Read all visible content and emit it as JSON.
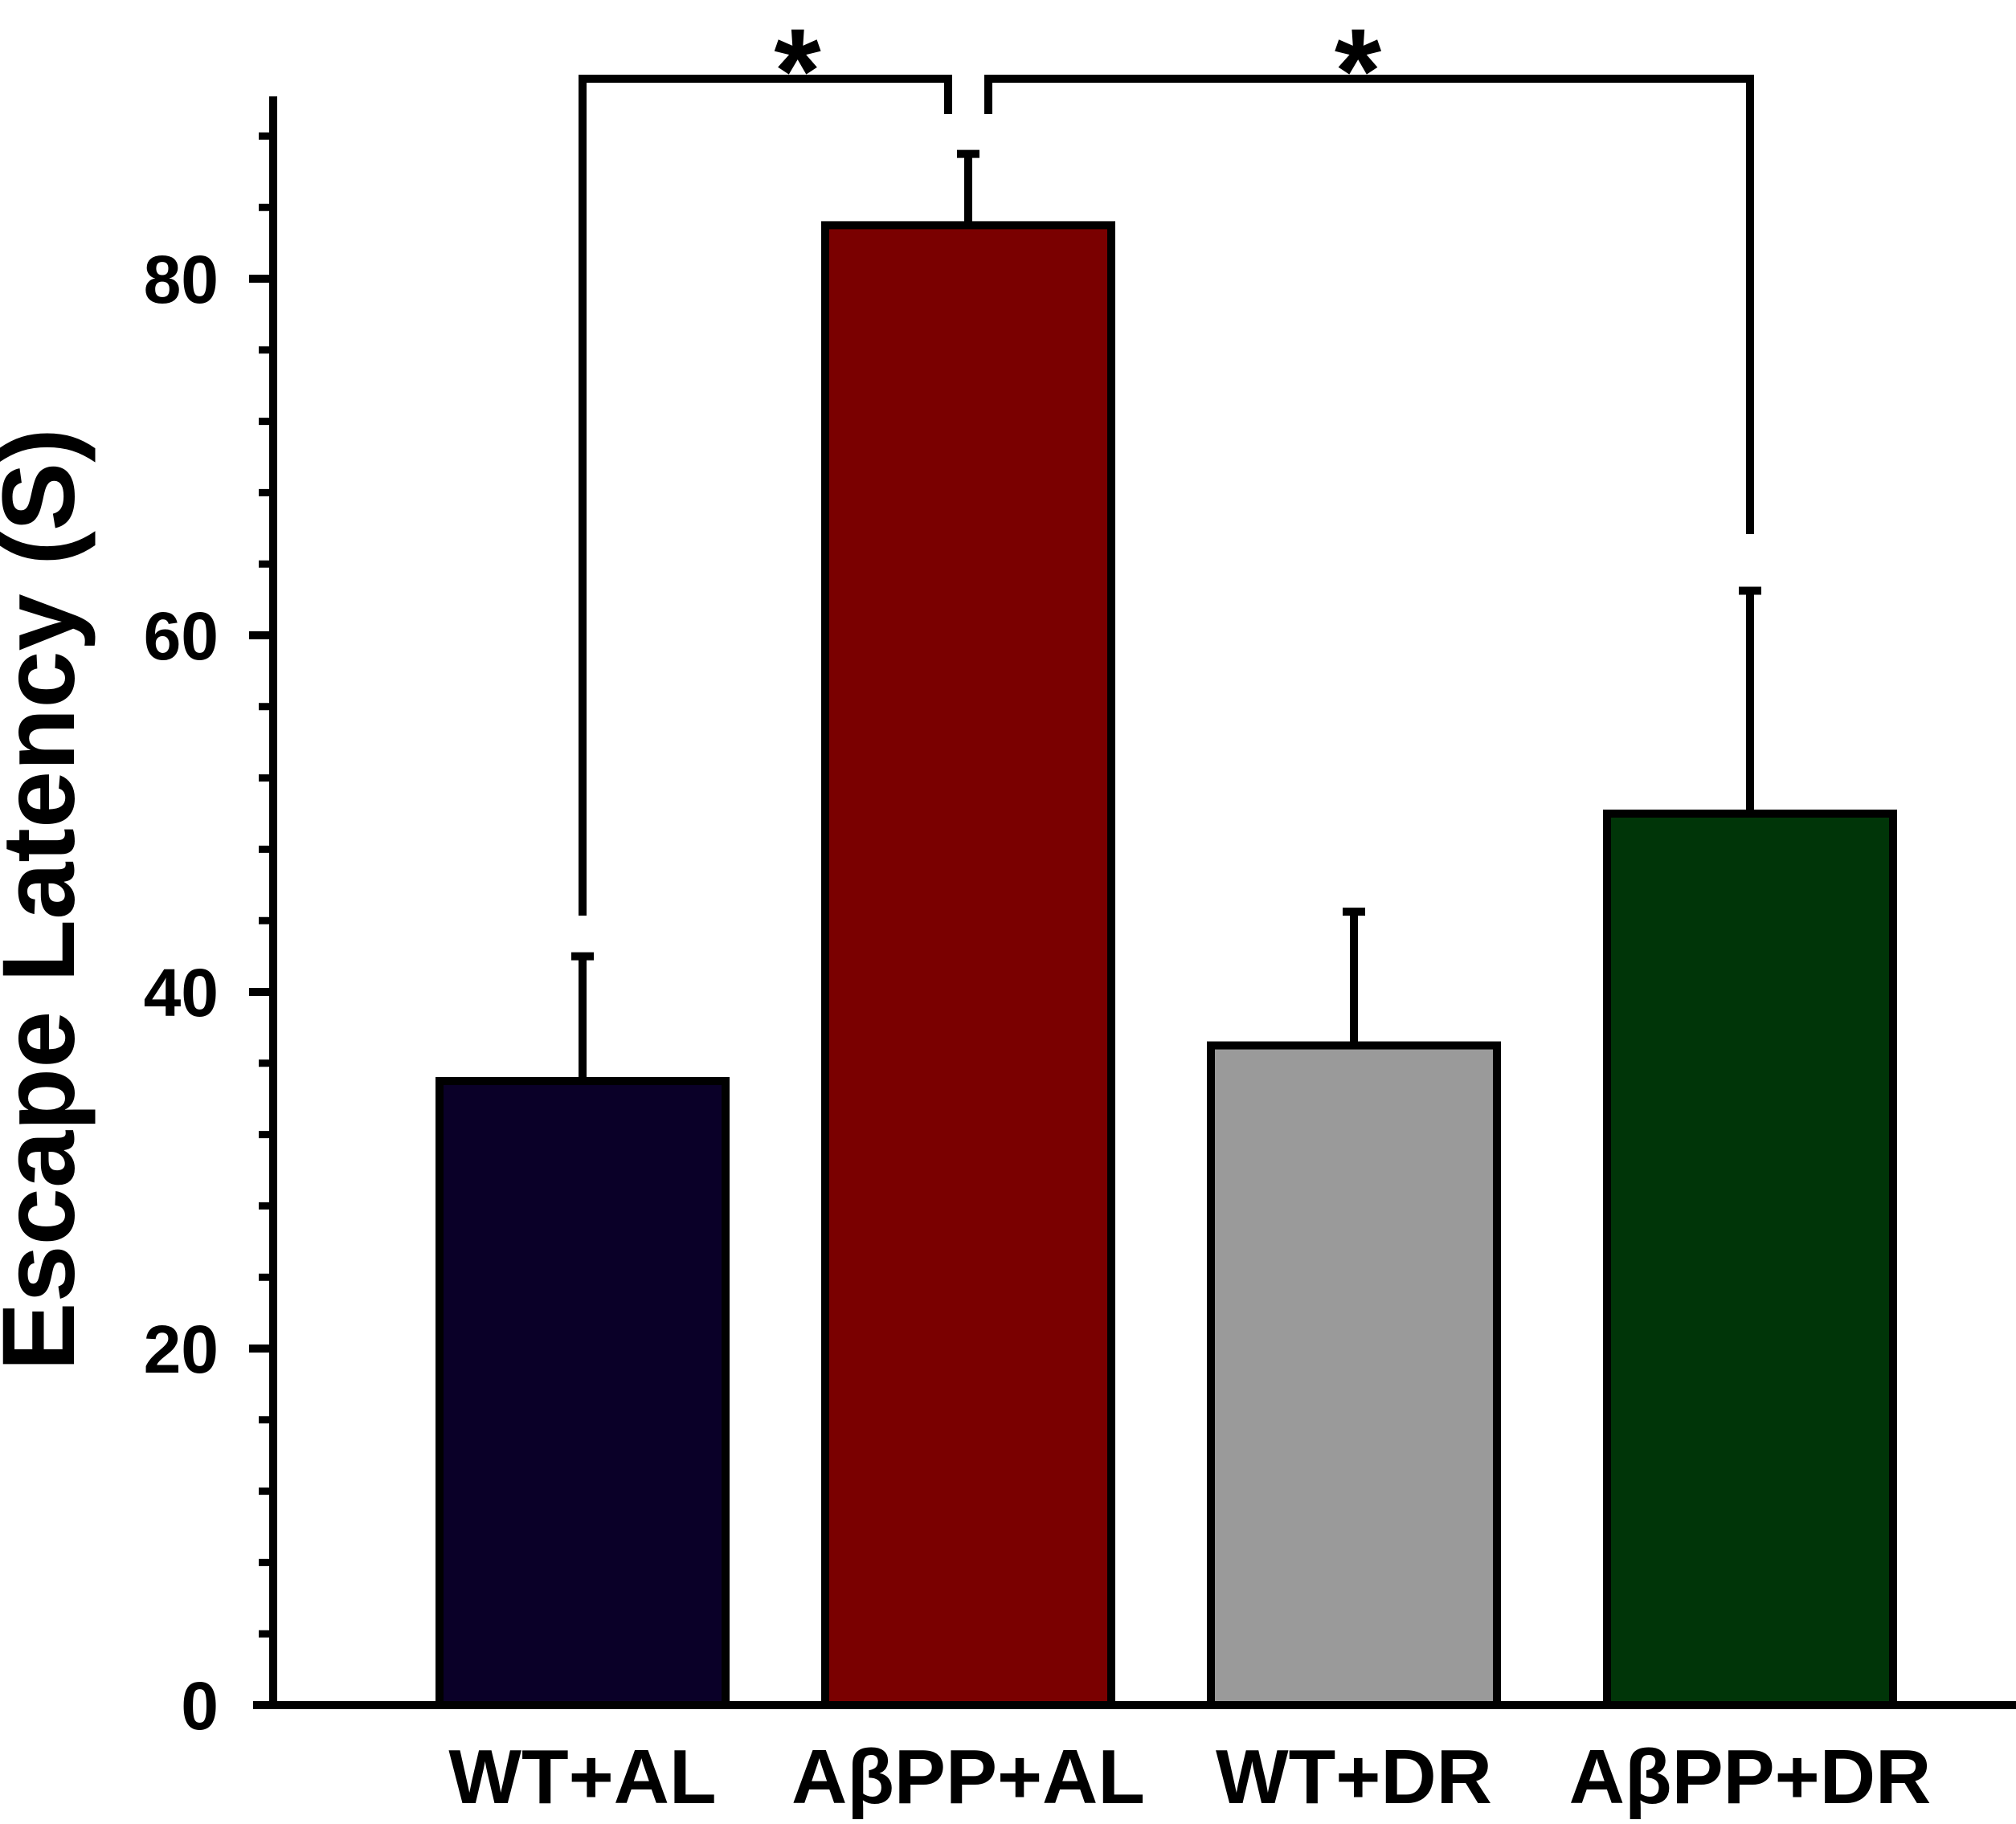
{
  "chart_data": {
    "type": "bar",
    "title": "",
    "xlabel": "",
    "ylabel": "Escape Latency (S)",
    "ylim": [
      0,
      90
    ],
    "yticks": [
      0,
      20,
      40,
      60,
      80
    ],
    "minor_tick_step": 4,
    "grid": false,
    "categories": [
      "WT+AL",
      "AβPP+AL",
      "WT+DR",
      "AβPP+DR"
    ],
    "values": [
      35,
      83,
      37,
      50
    ],
    "errors": [
      7,
      4,
      7.5,
      12.5
    ],
    "colors": [
      "#0a0028",
      "#7a0000",
      "#9a9a9a",
      "#003508"
    ],
    "significance": [
      {
        "from": 0,
        "to": 1,
        "label": "*"
      },
      {
        "from": 1,
        "to": 3,
        "label": "*"
      }
    ]
  }
}
